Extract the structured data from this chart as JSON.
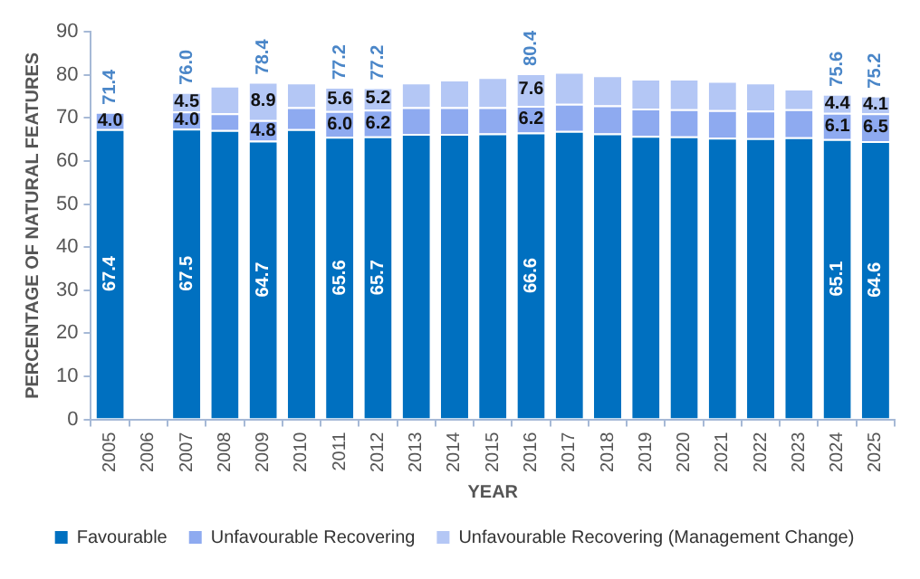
{
  "chart_data": {
    "type": "bar",
    "stacked": true,
    "xlabel": "YEAR",
    "ylabel": "PERCENTAGE OF NATURAL FEATURES",
    "categories": [
      "2005",
      "2006",
      "2007",
      "2008",
      "2009",
      "2010",
      "2011",
      "2012",
      "2013",
      "2014",
      "2015",
      "2016",
      "2017",
      "2018",
      "2019",
      "2020",
      "2021",
      "2022",
      "2023",
      "2024",
      "2025"
    ],
    "series": [
      {
        "name": "Favourable",
        "color": "#0070c0",
        "values": [
          67.4,
          null,
          67.5,
          67.2,
          64.7,
          67.4,
          65.6,
          65.7,
          66.3,
          66.3,
          66.4,
          66.6,
          67.0,
          66.4,
          65.8,
          65.7,
          65.4,
          65.3,
          65.5,
          65.1,
          64.6
        ],
        "value_labels": [
          "67.4",
          null,
          "67.5",
          null,
          "64.7",
          null,
          "65.6",
          "65.7",
          null,
          null,
          null,
          "66.6",
          null,
          null,
          null,
          null,
          null,
          null,
          null,
          "65.1",
          "64.6"
        ]
      },
      {
        "name": "Unfavourable Recovering",
        "color": "#8eaaf0",
        "values": [
          4.0,
          null,
          4.0,
          3.9,
          4.8,
          5.1,
          6.0,
          6.2,
          6.2,
          6.2,
          6.1,
          6.2,
          6.3,
          6.5,
          6.4,
          6.3,
          6.4,
          6.4,
          6.5,
          6.1,
          6.5
        ],
        "value_labels": [
          "4.0",
          null,
          "4.0",
          null,
          "4.8",
          null,
          "6.0",
          "6.2",
          null,
          null,
          null,
          "6.2",
          null,
          null,
          null,
          null,
          null,
          null,
          null,
          "6.1",
          "6.5"
        ]
      },
      {
        "name": "Unfavourable Recovering (Management Change)",
        "color": "#b4c7f5",
        "values": [
          null,
          null,
          4.5,
          6.4,
          8.9,
          5.7,
          5.6,
          5.2,
          5.7,
          6.4,
          7.0,
          7.6,
          7.4,
          7.0,
          6.9,
          7.1,
          6.8,
          6.5,
          4.8,
          4.4,
          4.1
        ],
        "value_labels": [
          null,
          null,
          "4.5",
          null,
          "8.9",
          null,
          "5.6",
          "5.2",
          null,
          null,
          null,
          "7.6",
          null,
          null,
          null,
          null,
          null,
          null,
          null,
          "4.4",
          "4.1"
        ]
      }
    ],
    "totals": [
      "71.4",
      null,
      "76.0",
      null,
      "78.4",
      null,
      "77.2",
      "77.2",
      null,
      null,
      null,
      "80.4",
      null,
      null,
      null,
      null,
      null,
      null,
      null,
      "75.6",
      "75.2"
    ],
    "ylim": [
      0,
      90
    ],
    "yticks": [
      0,
      10,
      20,
      30,
      40,
      50,
      60,
      70,
      80,
      90
    ],
    "grid": false,
    "legend": "bottom"
  }
}
